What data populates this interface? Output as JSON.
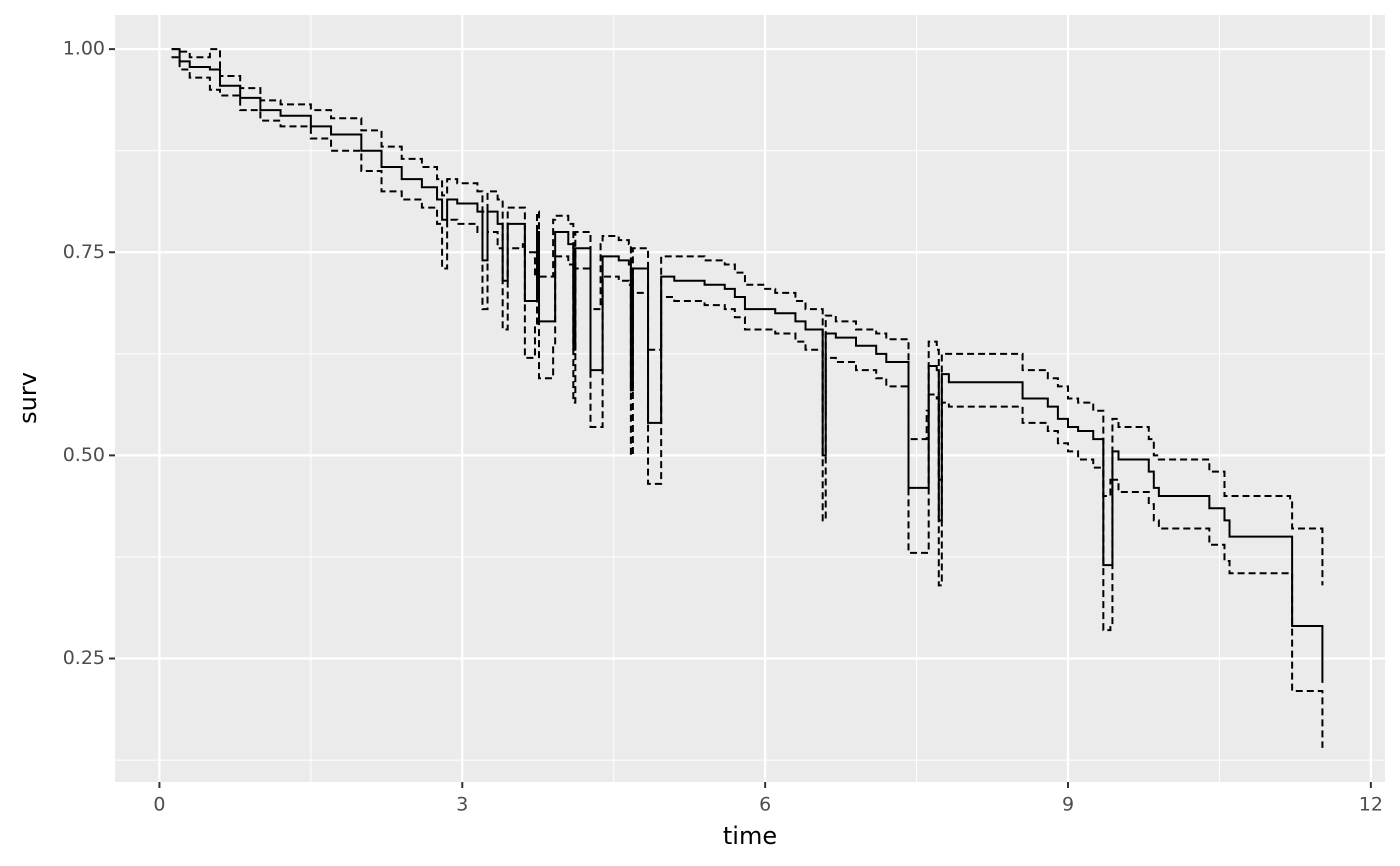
{
  "chart_data": {
    "type": "step",
    "xlabel": "time",
    "ylabel": "surv",
    "xlim": [
      -0.44,
      12.14
    ],
    "ylim": [
      0.098,
      1.042
    ],
    "xticks": [
      0,
      3,
      6,
      9,
      12
    ],
    "yticks": [
      0.25,
      {
        "value": 0.5,
        "label": "0.50"
      },
      0.75,
      {
        "value": 1,
        "label": "1.00"
      }
    ],
    "x_minor_ticks": [
      1.5,
      4.5,
      7.5,
      10.5
    ],
    "y_minor_ticks": [
      0.125,
      0.375,
      0.625,
      0.875
    ],
    "grid": true,
    "x": [
      0.12,
      0.2,
      0.3,
      0.5,
      0.6,
      0.8,
      1.0,
      1.2,
      1.5,
      1.7,
      2.0,
      2.2,
      2.4,
      2.6,
      2.75,
      2.8,
      2.85,
      2.95,
      3.15,
      3.2,
      3.25,
      3.35,
      3.4,
      3.45,
      3.6,
      3.62,
      3.72,
      3.74,
      3.76,
      3.9,
      3.92,
      4.05,
      4.1,
      4.12,
      4.25,
      4.27,
      4.37,
      4.39,
      4.55,
      4.65,
      4.67,
      4.69,
      4.82,
      4.84,
      4.95,
      4.97,
      5.1,
      5.4,
      5.6,
      5.7,
      5.8,
      6.0,
      6.1,
      6.3,
      6.4,
      6.55,
      6.57,
      6.6,
      6.7,
      6.9,
      7.1,
      7.2,
      7.4,
      7.42,
      7.6,
      7.62,
      7.7,
      7.72,
      7.75,
      7.82,
      8.5,
      8.55,
      8.8,
      8.9,
      9.0,
      9.1,
      9.25,
      9.33,
      9.35,
      9.42,
      9.44,
      9.5,
      9.7,
      9.8,
      9.85,
      9.9,
      10.35,
      10.4,
      10.5,
      10.55,
      10.6,
      11.2,
      11.22,
      11.5,
      11.52
    ],
    "series": [
      {
        "color": "#000000",
        "linestyle": "solid",
        "values": [
          1.0,
          0.985,
          0.978,
          0.975,
          0.955,
          0.94,
          0.925,
          0.918,
          0.905,
          0.895,
          0.875,
          0.855,
          0.84,
          0.83,
          0.815,
          0.79,
          0.815,
          0.81,
          0.8,
          0.74,
          0.8,
          0.785,
          0.715,
          0.785,
          0.785,
          0.69,
          0.69,
          0.775,
          0.665,
          0.665,
          0.775,
          0.76,
          0.63,
          0.755,
          0.755,
          0.605,
          0.605,
          0.745,
          0.74,
          0.735,
          0.58,
          0.73,
          0.73,
          0.54,
          0.54,
          0.72,
          0.715,
          0.71,
          0.705,
          0.695,
          0.68,
          0.68,
          0.675,
          0.665,
          0.655,
          0.655,
          0.5,
          0.65,
          0.645,
          0.635,
          0.625,
          0.615,
          0.615,
          0.46,
          0.46,
          0.61,
          0.605,
          0.42,
          0.6,
          0.59,
          0.59,
          0.57,
          0.56,
          0.545,
          0.535,
          0.53,
          0.52,
          0.52,
          0.365,
          0.365,
          0.505,
          0.495,
          0.495,
          0.48,
          0.46,
          0.45,
          0.45,
          0.435,
          0.435,
          0.42,
          0.4,
          0.4,
          0.29,
          0.29,
          0.22
        ]
      },
      {
        "color": "#000000",
        "linestyle": "dashed",
        "values": [
          1.0,
          0.997,
          0.99,
          1.0,
          0.967,
          0.952,
          0.937,
          0.932,
          0.925,
          0.915,
          0.9,
          0.88,
          0.865,
          0.855,
          0.84,
          0.82,
          0.84,
          0.835,
          0.825,
          0.8,
          0.825,
          0.815,
          0.765,
          0.805,
          0.805,
          0.75,
          0.72,
          0.8,
          0.72,
          0.79,
          0.795,
          0.785,
          0.7,
          0.775,
          0.775,
          0.68,
          0.76,
          0.77,
          0.765,
          0.76,
          0.66,
          0.755,
          0.755,
          0.63,
          0.63,
          0.745,
          0.745,
          0.74,
          0.735,
          0.725,
          0.71,
          0.705,
          0.7,
          0.69,
          0.68,
          0.68,
          0.55,
          0.672,
          0.665,
          0.655,
          0.65,
          0.643,
          0.643,
          0.52,
          0.555,
          0.64,
          0.63,
          0.47,
          0.625,
          0.625,
          0.625,
          0.605,
          0.595,
          0.585,
          0.57,
          0.565,
          0.555,
          0.555,
          0.45,
          0.47,
          0.545,
          0.535,
          0.535,
          0.52,
          0.5,
          0.495,
          0.495,
          0.48,
          0.48,
          0.45,
          0.45,
          0.445,
          0.41,
          0.41,
          0.34
        ]
      },
      {
        "color": "#000000",
        "linestyle": "dashed",
        "values": [
          0.99,
          0.975,
          0.965,
          0.95,
          0.943,
          0.925,
          0.912,
          0.905,
          0.89,
          0.875,
          0.85,
          0.825,
          0.815,
          0.805,
          0.785,
          0.73,
          0.79,
          0.785,
          0.775,
          0.68,
          0.775,
          0.755,
          0.655,
          0.755,
          0.76,
          0.62,
          0.66,
          0.745,
          0.595,
          0.635,
          0.745,
          0.735,
          0.565,
          0.73,
          0.73,
          0.535,
          0.535,
          0.72,
          0.715,
          0.71,
          0.5,
          0.7,
          0.7,
          0.465,
          0.465,
          0.695,
          0.69,
          0.685,
          0.68,
          0.67,
          0.655,
          0.655,
          0.65,
          0.64,
          0.63,
          0.63,
          0.42,
          0.62,
          0.615,
          0.605,
          0.595,
          0.585,
          0.585,
          0.38,
          0.38,
          0.575,
          0.57,
          0.34,
          0.565,
          0.56,
          0.56,
          0.54,
          0.53,
          0.515,
          0.505,
          0.495,
          0.485,
          0.485,
          0.285,
          0.29,
          0.47,
          0.455,
          0.455,
          0.44,
          0.42,
          0.41,
          0.41,
          0.39,
          0.39,
          0.37,
          0.355,
          0.355,
          0.21,
          0.21,
          0.14
        ]
      }
    ]
  }
}
